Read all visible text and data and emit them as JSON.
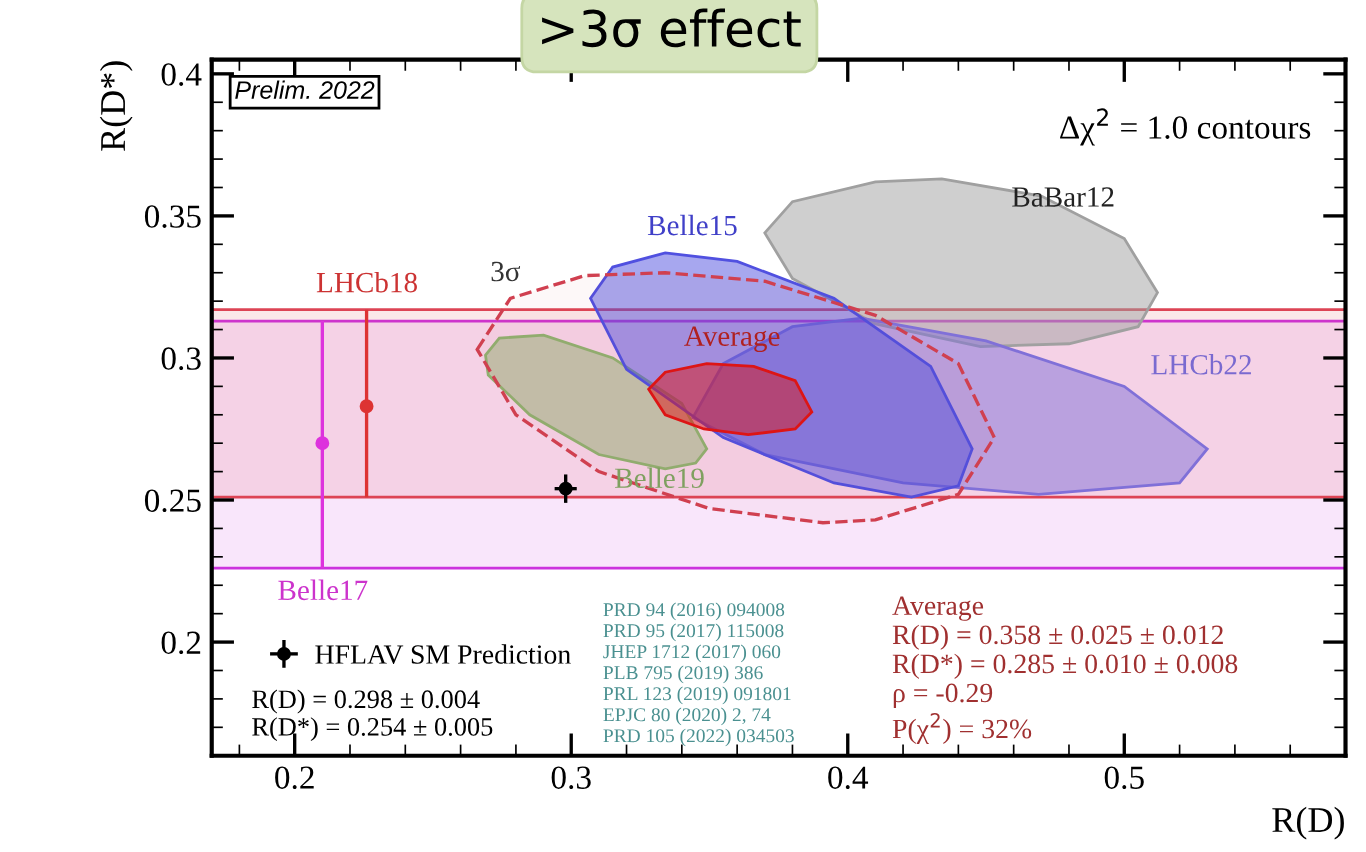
{
  "chart_data": {
    "type": "scatter",
    "title": ">3σ effect",
    "xlabel": "R(D)",
    "ylabel": "R(D*)",
    "xlim": [
      0.17,
      0.58
    ],
    "ylim": [
      0.16,
      0.405
    ],
    "xticks": [
      0.2,
      0.3,
      0.4,
      0.5
    ],
    "yticks": [
      0.2,
      0.25,
      0.3,
      0.35,
      0.4
    ],
    "grid": false,
    "legend": "bottom left",
    "bands": [
      {
        "axis": "y",
        "from": 0.226,
        "to": 0.313,
        "color": "#cc33dd"
      },
      {
        "axis": "y",
        "from": 0.251,
        "to": 0.317,
        "color": "#dd4455"
      }
    ],
    "series": [
      {
        "type": "area",
        "color": "#8fb070",
        "x": [
          0.269,
          0.274,
          0.29,
          0.315,
          0.34,
          0.349,
          0.345,
          0.334,
          0.31,
          0.285,
          0.27,
          0.269
        ],
        "values": [
          0.301,
          0.307,
          0.308,
          0.3,
          0.284,
          0.268,
          0.263,
          0.261,
          0.266,
          0.28,
          0.294,
          0.301
        ]
      },
      {
        "type": "area",
        "color": "#a0a0a0",
        "x": [
          0.37,
          0.38,
          0.41,
          0.434,
          0.47,
          0.5,
          0.512,
          0.505,
          0.48,
          0.448,
          0.41,
          0.38,
          0.37
        ],
        "values": [
          0.344,
          0.355,
          0.362,
          0.363,
          0.357,
          0.342,
          0.323,
          0.311,
          0.305,
          0.304,
          0.312,
          0.328,
          0.344
        ]
      },
      {
        "type": "area",
        "color": "#8070d8",
        "x": [
          0.344,
          0.355,
          0.38,
          0.405,
          0.45,
          0.5,
          0.53,
          0.52,
          0.469,
          0.42,
          0.37,
          0.344
        ],
        "values": [
          0.279,
          0.298,
          0.311,
          0.314,
          0.306,
          0.29,
          0.268,
          0.256,
          0.252,
          0.256,
          0.266,
          0.279
        ]
      },
      {
        "type": "area",
        "color": "#5050e0",
        "x": [
          0.307,
          0.315,
          0.334,
          0.36,
          0.395,
          0.43,
          0.445,
          0.44,
          0.423,
          0.395,
          0.355,
          0.32,
          0.307
        ],
        "values": [
          0.321,
          0.332,
          0.337,
          0.334,
          0.321,
          0.297,
          0.268,
          0.255,
          0.251,
          0.256,
          0.272,
          0.296,
          0.321
        ]
      },
      {
        "type": "area",
        "color": "#d04050",
        "line_style": "dashed",
        "x": [
          0.266,
          0.278,
          0.305,
          0.334,
          0.37,
          0.41,
          0.44,
          0.453,
          0.44,
          0.41,
          0.391,
          0.35,
          0.31,
          0.28,
          0.266
        ],
        "values": [
          0.303,
          0.321,
          0.329,
          0.33,
          0.327,
          0.315,
          0.298,
          0.272,
          0.252,
          0.243,
          0.242,
          0.247,
          0.26,
          0.28,
          0.303
        ]
      },
      {
        "type": "area",
        "color": "#dd1515",
        "x": [
          0.328,
          0.334,
          0.349,
          0.366,
          0.381,
          0.387,
          0.381,
          0.364,
          0.348,
          0.334,
          0.328
        ],
        "values": [
          0.289,
          0.295,
          0.298,
          0.297,
          0.292,
          0.281,
          0.275,
          0.273,
          0.275,
          0.28,
          0.289
        ]
      },
      {
        "color": "#dd33dd",
        "marker": "circle",
        "x": [
          0.21
        ],
        "values": [
          0.27
        ],
        "errors": [
          [
            0.226,
            0.313
          ]
        ]
      },
      {
        "color": "#dd3333",
        "marker": "circle",
        "x": [
          0.226
        ],
        "values": [
          0.283
        ],
        "errors": [
          [
            0.251,
            0.317
          ]
        ]
      },
      {
        "name": "HFLAV SM Prediction",
        "color": "#000000",
        "marker": "circle",
        "x": [
          0.298
        ],
        "values": [
          0.254
        ],
        "errors": [
          0.005
        ],
        "xerrors": [
          0.004
        ]
      }
    ],
    "annotations": [
      "Belle19",
      "BaBar12",
      "LHCb22",
      "Belle15",
      "3σ",
      "Average",
      "Belle17",
      "LHCb18",
      "Δχ$^{2}$ = 1.0 contours",
      "Prelim. 2022",
      "R(D) = 0.298 ± 0.004\nR(D*) = 0.254 ± 0.005",
      "PRD 94 (2016) 094008\nPRD 95 (2017) 115008\nJHEP 1712 (2017) 060\nPLB 795 (2019) 386\nPRL 123 (2019) 091801\nEPJC 80 (2020) 2, 74\nPRD 105 (2022) 034503",
      "Average\nR(D) = 0.358 ± 0.025 ± 0.012\nR(D*) = 0.285 ± 0.010 ± 0.008\nρ = -0.29\nP(χ$^{2}$) = 32%"
    ]
  }
}
